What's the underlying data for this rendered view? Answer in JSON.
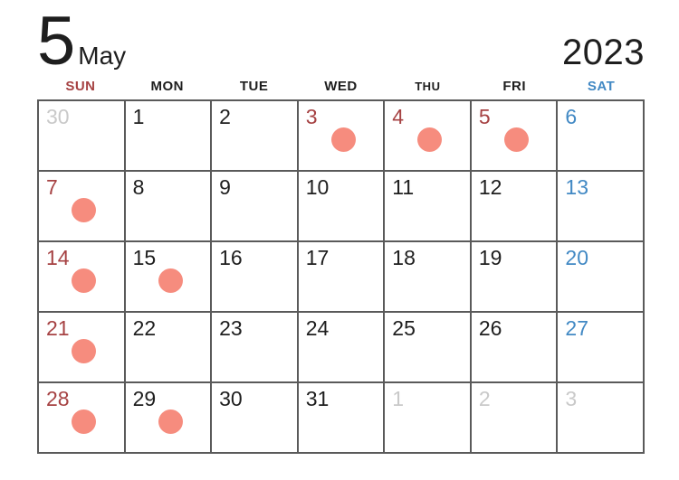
{
  "title": {
    "month_number": "5",
    "month_name": "May",
    "year": "2023"
  },
  "weekday_header": [
    {
      "label": "SUN",
      "color": "red"
    },
    {
      "label": "MON",
      "color": "black"
    },
    {
      "label": "TUE",
      "color": "black"
    },
    {
      "label": "WED",
      "color": "black"
    },
    {
      "label": "THU",
      "color": "black"
    },
    {
      "label": "FRI",
      "color": "black"
    },
    {
      "label": "SAT",
      "color": "blue"
    }
  ],
  "weeks": [
    [
      {
        "day": "30",
        "color": "gray",
        "dot": false
      },
      {
        "day": "1",
        "color": "black",
        "dot": false
      },
      {
        "day": "2",
        "color": "black",
        "dot": false
      },
      {
        "day": "3",
        "color": "red",
        "dot": true
      },
      {
        "day": "4",
        "color": "red",
        "dot": true
      },
      {
        "day": "5",
        "color": "red",
        "dot": true
      },
      {
        "day": "6",
        "color": "blue",
        "dot": false
      }
    ],
    [
      {
        "day": "7",
        "color": "red",
        "dot": true
      },
      {
        "day": "8",
        "color": "black",
        "dot": false
      },
      {
        "day": "9",
        "color": "black",
        "dot": false
      },
      {
        "day": "10",
        "color": "black",
        "dot": false
      },
      {
        "day": "11",
        "color": "black",
        "dot": false
      },
      {
        "day": "12",
        "color": "black",
        "dot": false
      },
      {
        "day": "13",
        "color": "blue",
        "dot": false
      }
    ],
    [
      {
        "day": "14",
        "color": "red",
        "dot": true
      },
      {
        "day": "15",
        "color": "black",
        "dot": true
      },
      {
        "day": "16",
        "color": "black",
        "dot": false
      },
      {
        "day": "17",
        "color": "black",
        "dot": false
      },
      {
        "day": "18",
        "color": "black",
        "dot": false
      },
      {
        "day": "19",
        "color": "black",
        "dot": false
      },
      {
        "day": "20",
        "color": "blue",
        "dot": false
      }
    ],
    [
      {
        "day": "21",
        "color": "red",
        "dot": true
      },
      {
        "day": "22",
        "color": "black",
        "dot": false
      },
      {
        "day": "23",
        "color": "black",
        "dot": false
      },
      {
        "day": "24",
        "color": "black",
        "dot": false
      },
      {
        "day": "25",
        "color": "black",
        "dot": false
      },
      {
        "day": "26",
        "color": "black",
        "dot": false
      },
      {
        "day": "27",
        "color": "blue",
        "dot": false
      }
    ],
    [
      {
        "day": "28",
        "color": "red",
        "dot": true
      },
      {
        "day": "29",
        "color": "black",
        "dot": true
      },
      {
        "day": "30",
        "color": "black",
        "dot": false
      },
      {
        "day": "31",
        "color": "black",
        "dot": false
      },
      {
        "day": "1",
        "color": "gray",
        "dot": false
      },
      {
        "day": "2",
        "color": "gray",
        "dot": false
      },
      {
        "day": "3",
        "color": "gray",
        "dot": false
      }
    ]
  ],
  "colors": {
    "holiday_red": "#a64243",
    "saturday_blue": "#4289c4",
    "adjacent_month_gray": "#c9c9c9",
    "dot_salmon": "#f68c7e",
    "grid_line": "#5a5a5a",
    "text_black": "#1e1e1e"
  }
}
